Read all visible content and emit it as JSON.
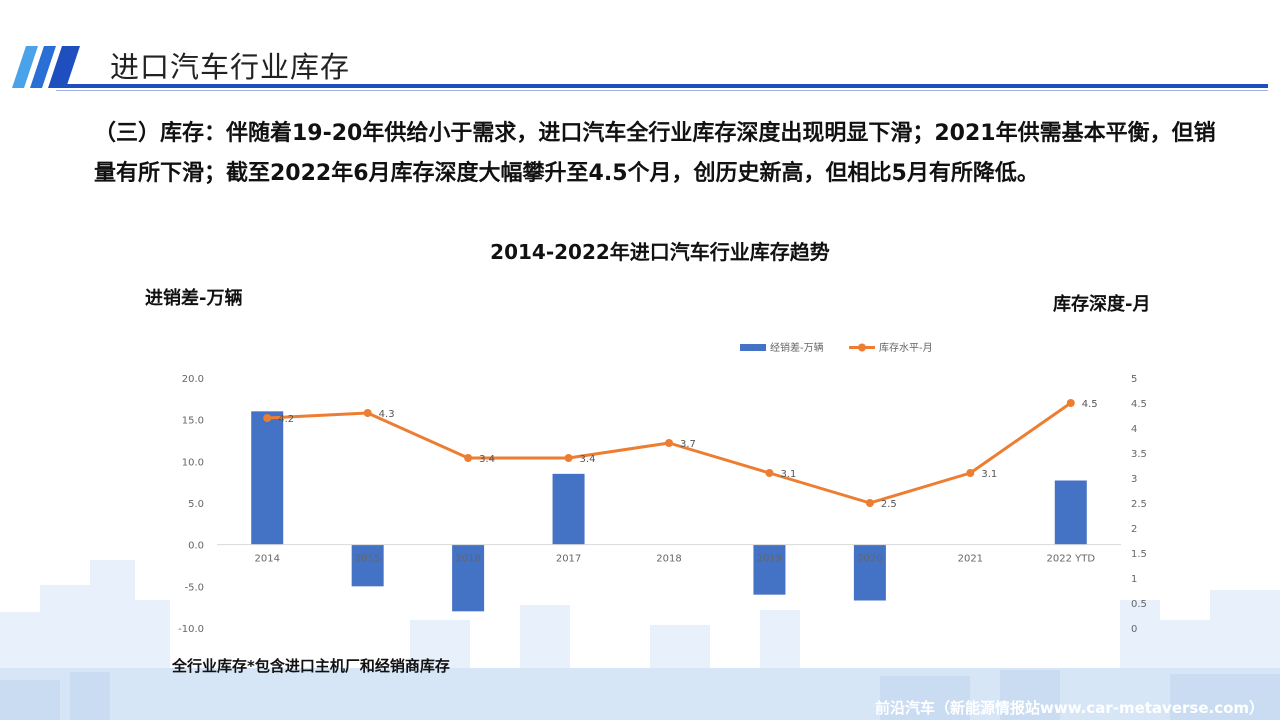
{
  "header": {
    "title": "进口汽车行业库存"
  },
  "body_text": "（三）库存：伴随着19-20年供给小于需求，进口汽车全行业库存深度出现明显下滑；2021年供需基本平衡，但销量有所下滑；截至2022年6月库存深度大幅攀升至4.5个月，创历史新高，但相比5月有所降低。",
  "chart_data": {
    "type": "bar",
    "title": "2014-2022年进口汽车行业库存趋势",
    "ylabel": "进销差-万辆",
    "ylabel_right": "库存深度-月",
    "categories": [
      "2014",
      "2015",
      "2016",
      "2017",
      "2018",
      "2019",
      "2020",
      "2021",
      "2022 YTD"
    ],
    "series": [
      {
        "name": "经销差-万辆",
        "type": "bar",
        "axis": "left",
        "color": "#4472c4",
        "values": [
          16.0,
          -5.0,
          -8.0,
          8.5,
          0.0,
          -6.0,
          -6.7,
          0.0,
          7.7
        ]
      },
      {
        "name": "库存水平-月",
        "type": "line",
        "axis": "right",
        "color": "#ed7d31",
        "values": [
          4.2,
          4.3,
          3.4,
          3.4,
          3.7,
          3.1,
          2.5,
          3.1,
          4.5
        ],
        "labels": [
          "4.2",
          "4.3",
          "3.4",
          "3.4",
          "3.7",
          "3.1",
          "2.5",
          "3.1",
          "4.5"
        ]
      }
    ],
    "ylim": [
      -10,
      20
    ],
    "yticks": [
      "20.0",
      "15.0",
      "10.0",
      "5.0",
      "0.0",
      "-5.0",
      "-10.0"
    ],
    "ylim_right": [
      0,
      5
    ],
    "yticks_right": [
      "5",
      "4.5",
      "4",
      "3.5",
      "3",
      "2.5",
      "2",
      "1.5",
      "1",
      "0.5",
      "0"
    ],
    "legend_position": "top-right",
    "grid": false
  },
  "footnote": "全行业库存*包含进口主机厂和经销商库存",
  "watermark": "前沿汽车（新能源情报站www.car-metaverse.com）"
}
